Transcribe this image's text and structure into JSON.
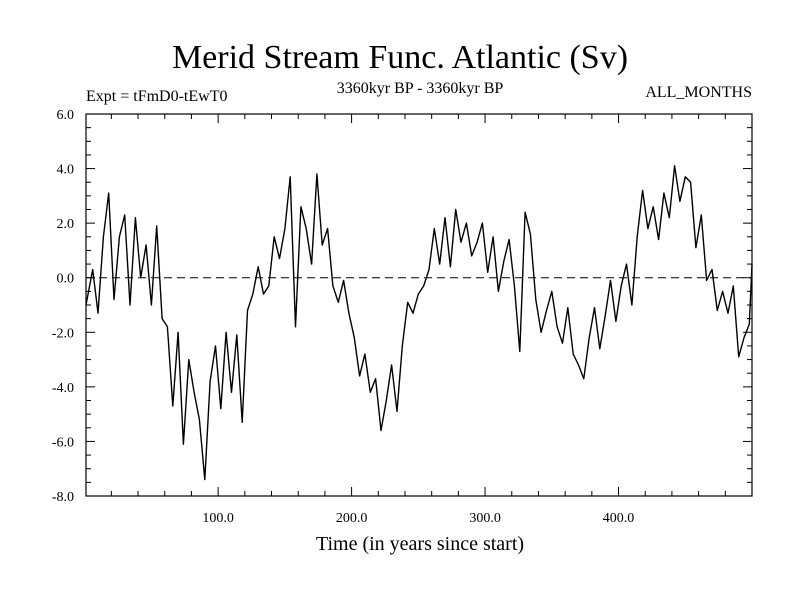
{
  "title": "Merid Stream Func. Atlantic (Sv)",
  "subtitle_left": "Expt = tFmD0-tEwT0",
  "subtitle_center": "3360kyr BP - 3360kyr BP",
  "subtitle_right": "ALL_MONTHS",
  "chart_data": {
    "type": "line",
    "title": "Merid Stream Func. Atlantic (Sv)",
    "xlabel": "Time (in years since start)",
    "ylabel": "",
    "xlim": [
      1,
      500
    ],
    "ylim": [
      -8,
      6
    ],
    "xticks": [
      100,
      200,
      300,
      400
    ],
    "xtick_labels": [
      "100.0",
      "200.0",
      "300.0",
      "400.0"
    ],
    "yticks": [
      6,
      4,
      2,
      0,
      -2,
      -4,
      -6,
      -8
    ],
    "ytick_labels": [
      "6.0",
      "4.0",
      "2.0",
      "0.0",
      "-2.0",
      "-4.0",
      "-6.0",
      "-8.0"
    ],
    "reference_line": 0,
    "series": [
      {
        "name": "Merid Stream Func. Atlantic",
        "x": [
          1,
          6,
          10,
          14,
          18,
          22,
          26,
          30,
          34,
          38,
          42,
          46,
          50,
          54,
          58,
          62,
          66,
          70,
          74,
          78,
          82,
          86,
          90,
          94,
          98,
          102,
          106,
          110,
          114,
          118,
          122,
          126,
          130,
          134,
          138,
          142,
          146,
          150,
          154,
          158,
          162,
          166,
          170,
          174,
          178,
          182,
          186,
          190,
          194,
          198,
          202,
          206,
          210,
          214,
          218,
          222,
          226,
          230,
          234,
          238,
          242,
          246,
          250,
          254,
          258,
          262,
          266,
          270,
          274,
          278,
          282,
          286,
          290,
          294,
          298,
          302,
          306,
          310,
          314,
          318,
          322,
          326,
          330,
          334,
          338,
          342,
          346,
          350,
          354,
          358,
          362,
          366,
          370,
          374,
          378,
          382,
          386,
          390,
          394,
          398,
          402,
          406,
          410,
          414,
          418,
          422,
          426,
          430,
          434,
          438,
          442,
          446,
          450,
          454,
          458,
          462,
          466,
          470,
          474,
          478,
          482,
          486,
          490,
          494,
          498,
          500
        ],
        "y": [
          -1.0,
          0.3,
          -1.3,
          1.5,
          3.1,
          -0.8,
          1.5,
          2.3,
          -1.0,
          2.2,
          0.0,
          1.2,
          -1.0,
          1.9,
          -1.5,
          -1.8,
          -4.7,
          -2.0,
          -6.1,
          -3.0,
          -4.2,
          -5.2,
          -7.4,
          -3.8,
          -2.5,
          -4.8,
          -2.0,
          -4.2,
          -2.1,
          -5.3,
          -1.2,
          -0.6,
          0.4,
          -0.6,
          -0.3,
          1.5,
          0.7,
          1.8,
          3.7,
          -1.8,
          2.6,
          1.8,
          0.5,
          3.8,
          1.2,
          1.8,
          -0.3,
          -0.9,
          -0.1,
          -1.3,
          -2.2,
          -3.6,
          -2.8,
          -4.2,
          -3.7,
          -5.6,
          -4.5,
          -3.2,
          -4.9,
          -2.5,
          -0.9,
          -1.3,
          -0.6,
          -0.3,
          0.3,
          1.8,
          0.5,
          2.2,
          0.4,
          2.5,
          1.3,
          2.0,
          0.8,
          1.3,
          2.0,
          0.2,
          1.5,
          -0.5,
          0.6,
          1.4,
          -0.3,
          -2.7,
          2.4,
          1.6,
          -0.8,
          -2.0,
          -1.2,
          -0.5,
          -1.8,
          -2.4,
          -1.1,
          -2.8,
          -3.2,
          -3.7,
          -2.2,
          -1.1,
          -2.6,
          -1.4,
          -0.1,
          -1.6,
          -0.3,
          0.5,
          -1.0,
          1.5,
          3.2,
          1.8,
          2.6,
          1.4,
          3.1,
          2.2,
          4.1,
          2.8,
          3.7,
          3.5,
          1.1,
          2.3,
          -0.1,
          0.3,
          -1.2,
          -0.5,
          -1.3,
          -0.3,
          -2.9,
          -2.2,
          -1.7,
          0.5
        ]
      }
    ]
  }
}
